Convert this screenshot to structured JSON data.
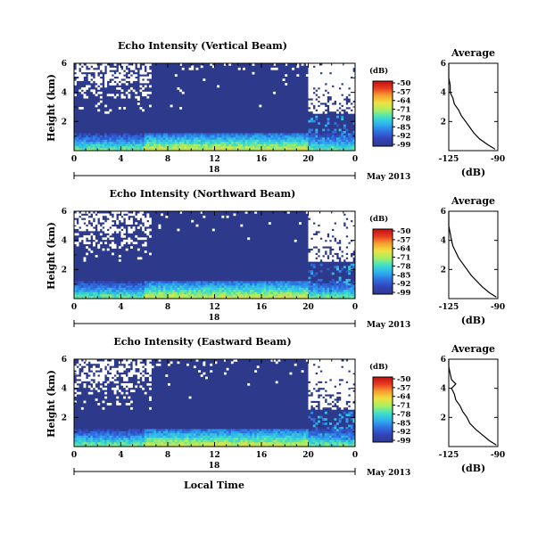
{
  "chart_data": [
    {
      "type": "heatmap",
      "beam": "vertical",
      "title": "Echo Intensity (Vertical Beam)",
      "ylabel": "Height (km)",
      "xlabel": "",
      "xlim": [
        0,
        24
      ],
      "ylim": [
        0,
        6
      ],
      "x_ticks": [
        "0",
        "4",
        "8",
        "12",
        "16",
        "20",
        "0"
      ],
      "y_ticks": [
        "6",
        "4",
        "2"
      ],
      "date_label": "18",
      "month_label": "May 2013",
      "colorbar": {
        "unit": "(dB)",
        "ticks": [
          "-50",
          "-57",
          "-64",
          "-71",
          "-78",
          "-85",
          "-92",
          "-99"
        ]
      },
      "noise_floor_db": -99,
      "profile": {
        "title": "Average",
        "xlabel": "(dB)",
        "x_ticks": [
          "-125",
          "-90"
        ],
        "y_ticks": [
          "6",
          "4",
          "2"
        ],
        "xlim": [
          -125,
          -90
        ],
        "ylim": [
          0,
          6
        ],
        "height": [
          0.1,
          0.4,
          0.8,
          1.2,
          1.6,
          2.0,
          2.4,
          2.8,
          3.2,
          3.6,
          4.0,
          4.5,
          5.0,
          5.5,
          6.0
        ],
        "db": [
          -92,
          -97,
          -103,
          -107,
          -110,
          -113,
          -116,
          -118,
          -121,
          -122,
          -124,
          -124,
          -125,
          -125,
          -125
        ]
      }
    },
    {
      "type": "heatmap",
      "beam": "northward",
      "title": "Echo Intensity (Northward Beam)",
      "ylabel": "Height (km)",
      "xlabel": "",
      "xlim": [
        0,
        24
      ],
      "ylim": [
        0,
        6
      ],
      "x_ticks": [
        "0",
        "4",
        "8",
        "12",
        "16",
        "20",
        "0"
      ],
      "y_ticks": [
        "6",
        "4",
        "2"
      ],
      "date_label": "18",
      "month_label": "May 2013",
      "colorbar": {
        "unit": "(dB)",
        "ticks": [
          "-50",
          "-57",
          "-64",
          "-71",
          "-78",
          "-85",
          "-92",
          "-99"
        ]
      },
      "noise_floor_db": -99,
      "profile": {
        "title": "Average",
        "xlabel": "(dB)",
        "x_ticks": [
          "-125",
          "-90"
        ],
        "y_ticks": [
          "6",
          "4",
          "2"
        ],
        "xlim": [
          -125,
          -90
        ],
        "ylim": [
          0,
          6
        ],
        "height": [
          0.1,
          0.4,
          0.8,
          1.2,
          1.6,
          2.0,
          2.4,
          2.8,
          3.2,
          3.6,
          4.0,
          4.5,
          5.0,
          5.5,
          6.0
        ],
        "db": [
          -91,
          -96,
          -101,
          -105,
          -109,
          -112,
          -115,
          -118,
          -120,
          -122,
          -123,
          -124,
          -125,
          -125,
          -125
        ]
      }
    },
    {
      "type": "heatmap",
      "beam": "eastward",
      "title": "Echo Intensity (Eastward Beam)",
      "ylabel": "Height (km)",
      "xlabel": "Local Time",
      "xlim": [
        0,
        24
      ],
      "ylim": [
        0,
        6
      ],
      "x_ticks": [
        "0",
        "4",
        "8",
        "12",
        "16",
        "20",
        "0"
      ],
      "y_ticks": [
        "6",
        "4",
        "2"
      ],
      "date_label": "18",
      "month_label": "May 2013",
      "colorbar": {
        "unit": "(dB)",
        "ticks": [
          "-50",
          "-57",
          "-64",
          "-71",
          "-78",
          "-85",
          "-92",
          "-99"
        ]
      },
      "noise_floor_db": -99,
      "profile": {
        "title": "Average",
        "xlabel": "(dB)",
        "x_ticks": [
          "-125",
          "-90"
        ],
        "y_ticks": [
          "6",
          "4",
          "2"
        ],
        "xlim": [
          -125,
          -90
        ],
        "ylim": [
          0,
          6
        ],
        "height": [
          0.1,
          0.4,
          0.8,
          1.2,
          1.6,
          2.0,
          2.4,
          2.8,
          3.2,
          3.6,
          4.0,
          4.3,
          4.6,
          5.0,
          5.5,
          6.0
        ],
        "db": [
          -91,
          -96,
          -101,
          -106,
          -110,
          -112,
          -115,
          -117,
          -120,
          -121,
          -123,
          -120,
          -123,
          -124,
          -125,
          -125
        ]
      }
    }
  ],
  "colors": {
    "colormap": [
      "#2d3a8c",
      "#3343b8",
      "#2f6fe0",
      "#2fb0f0",
      "#3fe0c8",
      "#a8f060",
      "#f0e040",
      "#f5a030",
      "#e83a20",
      "#c01010"
    ],
    "missing": "#ffffff",
    "axes": "#000000"
  }
}
